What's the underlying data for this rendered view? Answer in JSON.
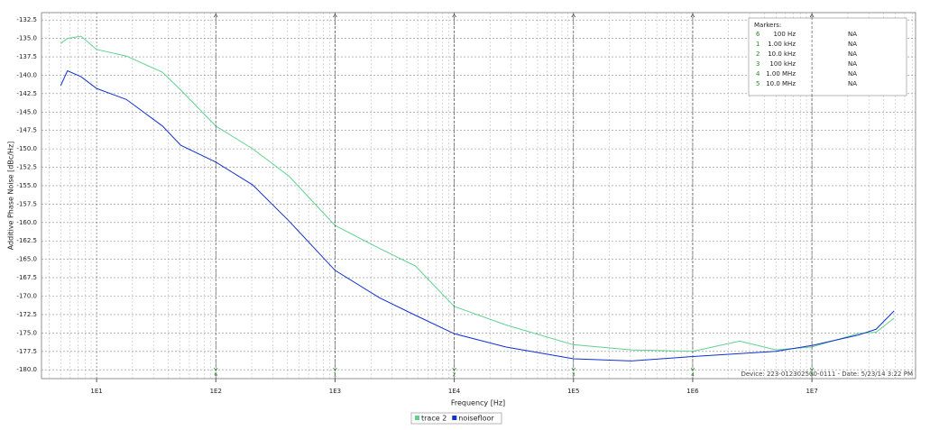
{
  "chart_data": {
    "type": "line",
    "ylabel": "Additive Phase Noise [dBc/Hz]",
    "xlabel": "Frequency [Hz]",
    "device_info": "Device: 223-012302500-0111 - Date: 5/23/14 3:22 PM",
    "xscale": "log",
    "grid": true,
    "xlim": [
      3.45,
      74000000
    ],
    "ylim": [
      -181.2,
      -131.5
    ],
    "xticks": [
      {
        "value": 10,
        "label": "1E1"
      },
      {
        "value": 100,
        "label": "1E2"
      },
      {
        "value": 1000,
        "label": "1E3"
      },
      {
        "value": 10000,
        "label": "1E4"
      },
      {
        "value": 100000,
        "label": "1E5"
      },
      {
        "value": 1000000,
        "label": "1E6"
      },
      {
        "value": 10000000,
        "label": "1E7"
      }
    ],
    "yticks": [
      -132.5,
      {
        "value": -135,
        "label": "-135.0"
      },
      -137.5,
      {
        "value": -140,
        "label": "-140.0"
      },
      -142.5,
      {
        "value": -145,
        "label": "-145.0"
      },
      -147.5,
      {
        "value": -150,
        "label": "-150.0"
      },
      -152.5,
      {
        "value": -155,
        "label": "-155.0"
      },
      -157.5,
      {
        "value": -160,
        "label": "-160.0"
      },
      -162.5,
      {
        "value": -165,
        "label": "-165.0"
      },
      -167.5,
      {
        "value": -170,
        "label": "-170.0"
      },
      -172.5,
      {
        "value": -175,
        "label": "-175.0"
      },
      -177.5,
      {
        "value": -180,
        "label": "-180.0"
      }
    ],
    "x": [
      5,
      5.7,
      7.4,
      10,
      17.8,
      35.7,
      50.7,
      100,
      204,
      411,
      1000,
      2350,
      4720,
      10000,
      27000,
      100000,
      305000,
      1000000,
      2480000,
      4980000,
      10000000,
      24300000,
      34500000,
      48900000
    ],
    "series": [
      {
        "name": "trace 2",
        "color": "#5fd18f",
        "values": [
          -135.7,
          -135.0,
          -134.7,
          -136.5,
          -137.4,
          -139.6,
          -142.0,
          -146.9,
          -150.0,
          -153.7,
          -160.4,
          -163.5,
          -165.9,
          -171.4,
          -173.9,
          -176.6,
          -177.3,
          -177.5,
          -176.1,
          -177.3,
          -176.9,
          -175.1,
          -174.9,
          -173.0
        ]
      },
      {
        "name": "noisefloor",
        "color": "#1030d0",
        "values": [
          -141.4,
          -139.4,
          -140.2,
          -141.8,
          -143.3,
          -146.9,
          -149.5,
          -151.8,
          -154.9,
          -159.8,
          -166.5,
          -170.2,
          -172.6,
          -175.1,
          -176.9,
          -178.5,
          -178.8,
          -178.2,
          -177.8,
          -177.5,
          -176.7,
          -175.3,
          -174.5,
          -172.0
        ]
      }
    ],
    "markers": {
      "title": "Markers:",
      "rows": [
        {
          "id": "6",
          "x": 100,
          "freq_label": "100 Hz",
          "value": "NA"
        },
        {
          "id": "1",
          "x": 1000,
          "freq_label": "1.00 kHz",
          "value": "NA"
        },
        {
          "id": "2",
          "x": 10000,
          "freq_label": "10.0 kHz",
          "value": "NA"
        },
        {
          "id": "3",
          "x": 100000,
          "freq_label": "100 kHz",
          "value": "NA"
        },
        {
          "id": "4",
          "x": 1000000,
          "freq_label": "1.00 MHz",
          "value": "NA"
        },
        {
          "id": "5",
          "x": 10000000,
          "freq_label": "10.0 MHz",
          "value": "NA"
        }
      ]
    }
  }
}
